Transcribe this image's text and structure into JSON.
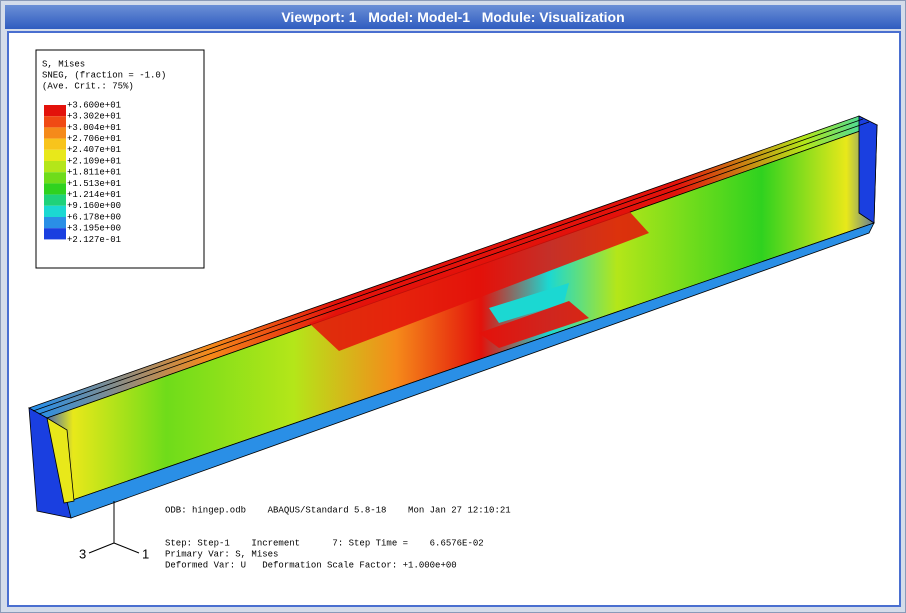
{
  "window": {
    "title": "Viewport: 1   Model: Model-1   Module: Visualization"
  },
  "legend": {
    "lines": [
      "S, Mises",
      "SNEG, (fraction = -1.0)",
      "(Ave. Crit.: 75%)"
    ],
    "values": [
      "+3.600e+01",
      "+3.302e+01",
      "+3.004e+01",
      "+2.706e+01",
      "+2.407e+01",
      "+2.109e+01",
      "+1.811e+01",
      "+1.513e+01",
      "+1.214e+01",
      "+9.160e+00",
      "+6.178e+00",
      "+3.195e+00",
      "+2.127e-01"
    ],
    "colors": [
      "#e3120b",
      "#f04a14",
      "#f58a1a",
      "#f8c41c",
      "#e8e81a",
      "#b4e619",
      "#6fdc1a",
      "#2fd21f",
      "#1fd27a",
      "#1bd8d2",
      "#2a8fe6",
      "#1a3fe0"
    ]
  },
  "info": {
    "odb": "ODB: hingep.odb    ABAQUS/Standard 5.8-18    Mon Jan 27 12:10:21",
    "step": "Step: Step-1    Increment      7: Step Time =    6.6576E-02",
    "primary": "Primary Var: S, Mises",
    "deformed": "Deformed Var: U   Deformation Scale Factor: +1.000e+00"
  },
  "triad": {
    "axis_3": "3",
    "axis_1": "1"
  }
}
